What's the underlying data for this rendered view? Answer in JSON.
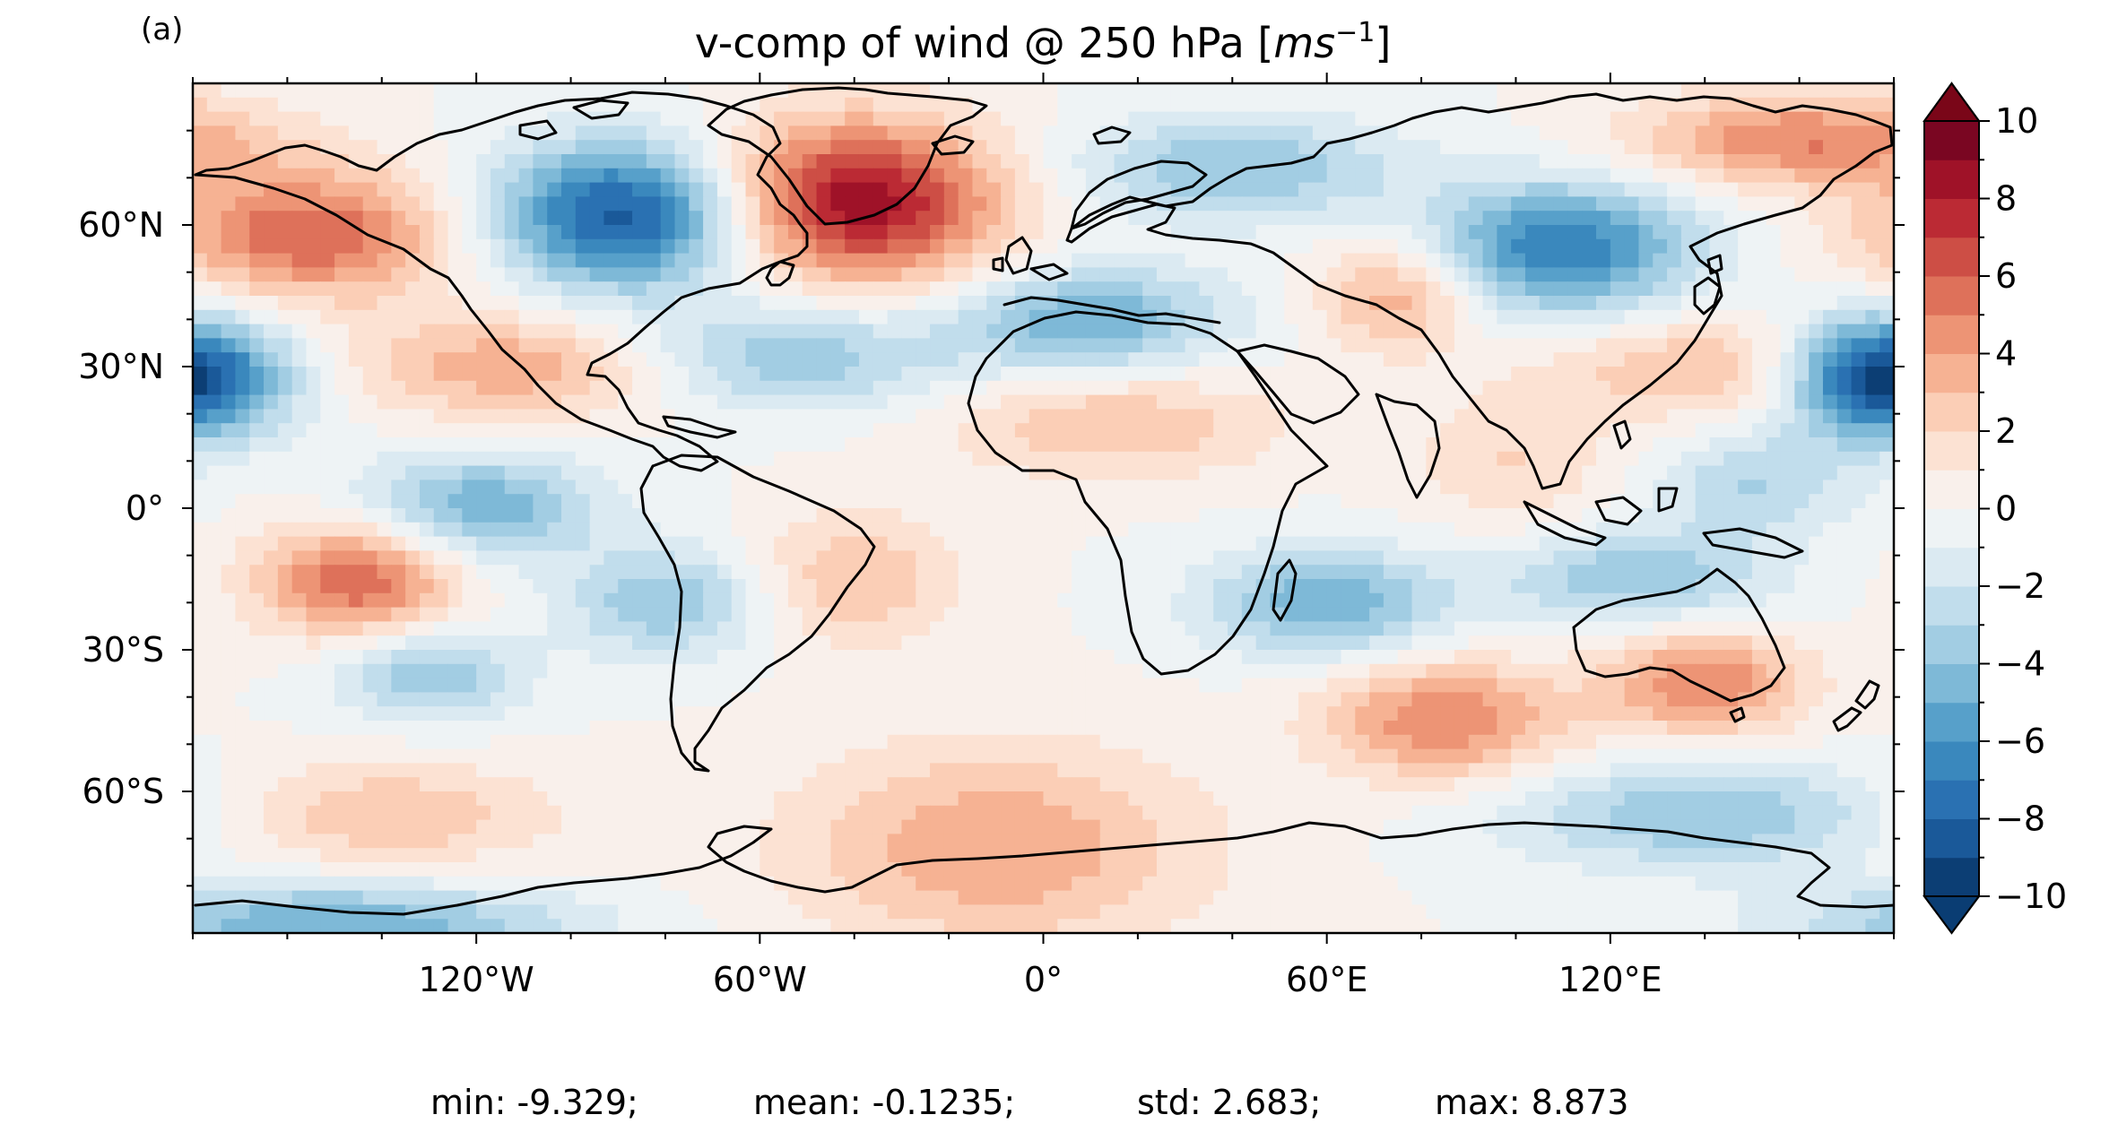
{
  "panel_label": "(a)",
  "title": "v-comp of wind @ 250 hPa [",
  "title_unit_base": "ms",
  "title_unit_exp": "−1",
  "title_close": "]",
  "stats": {
    "min": "min: -9.329;",
    "mean": "mean: -0.1235;",
    "std": "std: 2.683;",
    "max": "max: 8.873"
  },
  "colors": {
    "low_extreme": "#0a3d73",
    "high_extreme": "#7a0618",
    "coast": "#000000"
  },
  "chart_data": {
    "type": "heatmap",
    "projection": "equirectangular",
    "xlim": [
      -180,
      180
    ],
    "ylim": [
      -90,
      90
    ],
    "x_ticks": [
      {
        "value": -120,
        "label": "120°W"
      },
      {
        "value": -60,
        "label": "60°W"
      },
      {
        "value": 0,
        "label": "0°"
      },
      {
        "value": 60,
        "label": "60°E"
      },
      {
        "value": 120,
        "label": "120°E"
      }
    ],
    "y_ticks": [
      {
        "value": 60,
        "label": "60°N"
      },
      {
        "value": 30,
        "label": "30°N"
      },
      {
        "value": 0,
        "label": "0°"
      },
      {
        "value": -30,
        "label": "30°S"
      },
      {
        "value": -60,
        "label": "60°S"
      }
    ],
    "colorbar": {
      "min": -10,
      "max": 10,
      "step": 1,
      "extend": "both",
      "ticks": [
        {
          "value": 10,
          "label": "10"
        },
        {
          "value": 8,
          "label": "8"
        },
        {
          "value": 6,
          "label": "6"
        },
        {
          "value": 4,
          "label": "4"
        },
        {
          "value": 2,
          "label": "2"
        },
        {
          "value": 0,
          "label": "0"
        },
        {
          "value": -2,
          "label": "−2"
        },
        {
          "value": -4,
          "label": "−4"
        },
        {
          "value": -6,
          "label": "−6"
        },
        {
          "value": -8,
          "label": "−8"
        },
        {
          "value": -10,
          "label": "−10"
        }
      ]
    },
    "anomalies": [
      {
        "lon": -40,
        "lat": 65,
        "amp": 9,
        "slon": 22,
        "slat": 12
      },
      {
        "lon": -88,
        "lat": 62,
        "amp": -9,
        "slon": 20,
        "slat": 11
      },
      {
        "lon": -155,
        "lat": 58,
        "amp": 6,
        "slon": 22,
        "slat": 10
      },
      {
        "lon": -175,
        "lat": 28,
        "amp": -6,
        "slon": 14,
        "slat": 9
      },
      {
        "lon": 172,
        "lat": 28,
        "amp": -6,
        "slon": 12,
        "slat": 9
      },
      {
        "lon": 160,
        "lat": 78,
        "amp": 5,
        "slon": 25,
        "slat": 7
      },
      {
        "lon": 110,
        "lat": 55,
        "amp": -7,
        "slon": 20,
        "slat": 10
      },
      {
        "lon": 75,
        "lat": 45,
        "amp": 4,
        "slon": 12,
        "slat": 8
      },
      {
        "lon": 40,
        "lat": 72,
        "amp": -4,
        "slon": 25,
        "slat": 8
      },
      {
        "lon": 10,
        "lat": 40,
        "amp": -5,
        "slon": 20,
        "slat": 8
      },
      {
        "lon": -55,
        "lat": 32,
        "amp": -4,
        "slon": 25,
        "slat": 8
      },
      {
        "lon": -110,
        "lat": 30,
        "amp": 4,
        "slon": 25,
        "slat": 8
      },
      {
        "lon": 15,
        "lat": 18,
        "amp": 3,
        "slon": 25,
        "slat": 8
      },
      {
        "lon": 140,
        "lat": 30,
        "amp": 3,
        "slon": 25,
        "slat": 8
      },
      {
        "lon": -120,
        "lat": 0,
        "amp": -5,
        "slon": 18,
        "slat": 8
      },
      {
        "lon": -145,
        "lat": -15,
        "amp": 6,
        "slon": 15,
        "slat": 9
      },
      {
        "lon": -80,
        "lat": -20,
        "amp": -4,
        "slon": 15,
        "slat": 8
      },
      {
        "lon": -40,
        "lat": -15,
        "amp": 3,
        "slon": 15,
        "slat": 10
      },
      {
        "lon": 60,
        "lat": -20,
        "amp": -5,
        "slon": 18,
        "slat": 8
      },
      {
        "lon": 125,
        "lat": -15,
        "amp": -4,
        "slon": 20,
        "slat": 7
      },
      {
        "lon": 140,
        "lat": -37,
        "amp": 5,
        "slon": 15,
        "slat": 8
      },
      {
        "lon": 85,
        "lat": -45,
        "amp": 5,
        "slon": 18,
        "slat": 9
      },
      {
        "lon": -130,
        "lat": -35,
        "amp": -4,
        "slon": 14,
        "slat": 7
      },
      {
        "lon": -140,
        "lat": -65,
        "amp": 3,
        "slon": 25,
        "slat": 8
      },
      {
        "lon": -150,
        "lat": -88,
        "amp": -5,
        "slon": 35,
        "slat": 6
      },
      {
        "lon": -10,
        "lat": -72,
        "amp": 4,
        "slon": 30,
        "slat": 15
      },
      {
        "lon": 140,
        "lat": -65,
        "amp": -4,
        "slon": 30,
        "slat": 8
      },
      {
        "lon": 150,
        "lat": 5,
        "amp": -3,
        "slon": 15,
        "slat": 8
      },
      {
        "lon": 100,
        "lat": 10,
        "amp": 2,
        "slon": 15,
        "slat": 10
      }
    ]
  }
}
